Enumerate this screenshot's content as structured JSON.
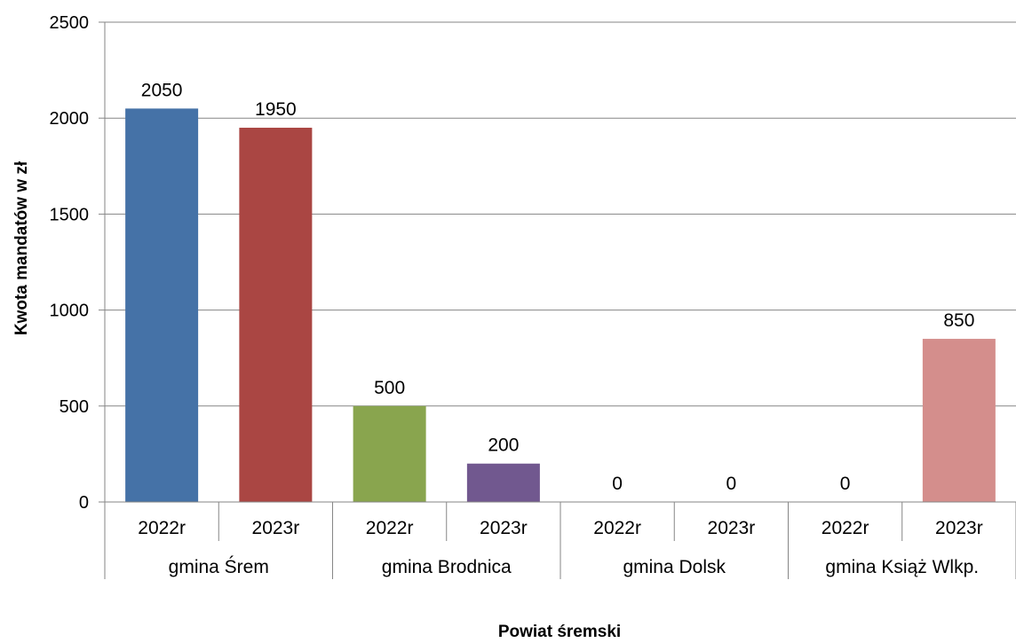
{
  "chart_data": {
    "type": "bar",
    "title": "",
    "xlabel": "Powiat śremski",
    "ylabel": "Kwota mandatów w zł",
    "ylim": [
      0,
      2500
    ],
    "yticks": [
      0,
      500,
      1000,
      1500,
      2000,
      2500
    ],
    "grid": true,
    "legend": "none",
    "groups": [
      "gmina Śrem",
      "gmina Brodnica",
      "gmina Dolsk",
      "gmina Książ Wlkp."
    ],
    "categories": [
      "2022r",
      "2023r",
      "2022r",
      "2023r",
      "2022r",
      "2023r",
      "2022r",
      "2023r"
    ],
    "values": [
      2050,
      1950,
      500,
      200,
      0,
      0,
      0,
      850
    ],
    "data_labels": [
      "2050",
      "1950",
      "500",
      "200",
      "0",
      "0",
      "0",
      "850"
    ],
    "colors": [
      "#4572A7",
      "#AA4643",
      "#89A54E",
      "#71588F",
      "#4572A7",
      "#AA4643",
      "#89A54E",
      "#D48E8C"
    ]
  }
}
